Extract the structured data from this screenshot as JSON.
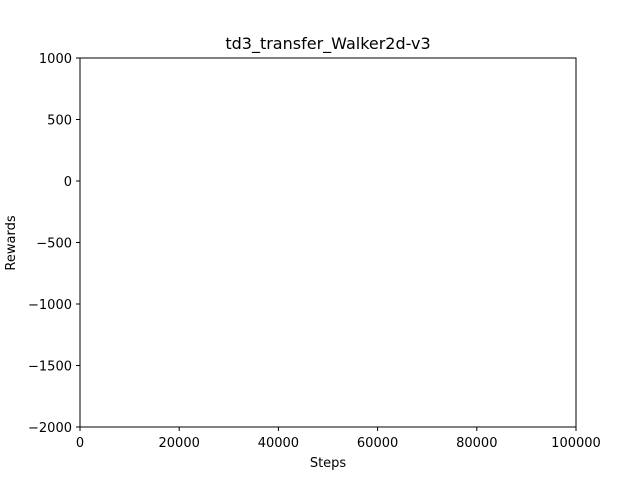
{
  "chart_data": {
    "type": "line",
    "title": "td3_transfer_Walker2d-v3",
    "xlabel": "Steps",
    "ylabel": "Rewards",
    "xlim": [
      0,
      100000
    ],
    "ylim": [
      -2000,
      1000
    ],
    "xticks": [
      0,
      20000,
      40000,
      60000,
      80000,
      100000
    ],
    "yticks": [
      -2000,
      -1500,
      -1000,
      -500,
      0,
      500,
      1000
    ],
    "xtick_labels": [
      "0",
      "20000",
      "40000",
      "60000",
      "80000",
      "100000"
    ],
    "ytick_labels": [
      "−2000",
      "−1500",
      "−1000",
      "−500",
      "0",
      "500",
      "1000"
    ],
    "grid": false,
    "series": []
  }
}
